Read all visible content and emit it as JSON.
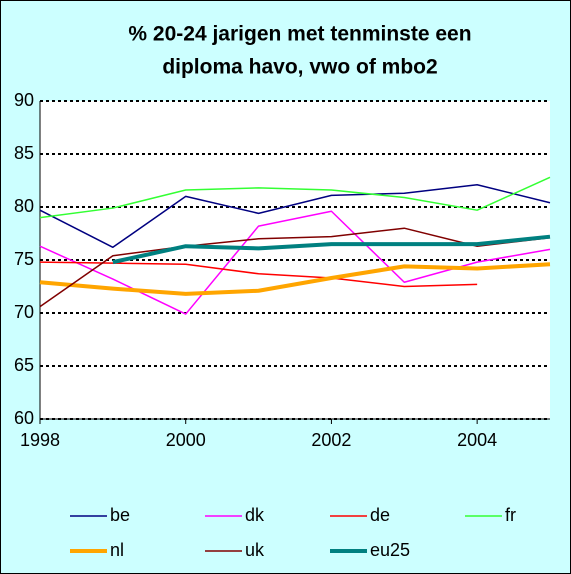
{
  "chart_data": {
    "type": "line",
    "title": [
      "% 20-24 jarigen met tenminste een",
      "diploma havo, vwo of mbo2"
    ],
    "x": [
      1998,
      1999,
      2000,
      2001,
      2002,
      2003,
      2004,
      2005
    ],
    "xlim": [
      1998,
      2005
    ],
    "xticks": [
      1998,
      2000,
      2002,
      2004
    ],
    "ylim": [
      60,
      90
    ],
    "yticks": [
      60,
      65,
      70,
      75,
      80,
      85,
      90
    ],
    "grid": true,
    "legend": "bottom",
    "series": [
      {
        "name": "be",
        "color": "#000080",
        "line_width": 1.5,
        "values": [
          79.7,
          76.2,
          81.0,
          79.4,
          81.1,
          81.3,
          82.1,
          80.4
        ]
      },
      {
        "name": "dk",
        "color": "#ff00ff",
        "line_width": 1.5,
        "values": [
          76.3,
          73.2,
          69.9,
          78.2,
          79.6,
          72.9,
          74.8,
          76.0
        ]
      },
      {
        "name": "de",
        "color": "#ff0000",
        "line_width": 1.5,
        "values": [
          74.8,
          74.7,
          74.6,
          73.7,
          73.3,
          72.5,
          72.7,
          null
        ]
      },
      {
        "name": "fr",
        "color": "#33ff33",
        "line_width": 1.5,
        "values": [
          79.0,
          79.9,
          81.6,
          81.8,
          81.6,
          80.9,
          79.7,
          82.8
        ]
      },
      {
        "name": "nl",
        "color": "#ffa500",
        "line_width": 4,
        "values": [
          72.9,
          72.3,
          71.8,
          72.1,
          73.3,
          74.4,
          74.2,
          74.6
        ]
      },
      {
        "name": "uk",
        "color": "#800000",
        "line_width": 1.5,
        "values": [
          70.6,
          75.4,
          76.3,
          77.0,
          77.2,
          78.0,
          76.3,
          77.1
        ]
      },
      {
        "name": "eu25",
        "color": "#008080",
        "line_width": 4,
        "values": [
          null,
          74.8,
          76.3,
          76.1,
          76.5,
          76.5,
          76.5,
          77.2
        ]
      }
    ]
  }
}
